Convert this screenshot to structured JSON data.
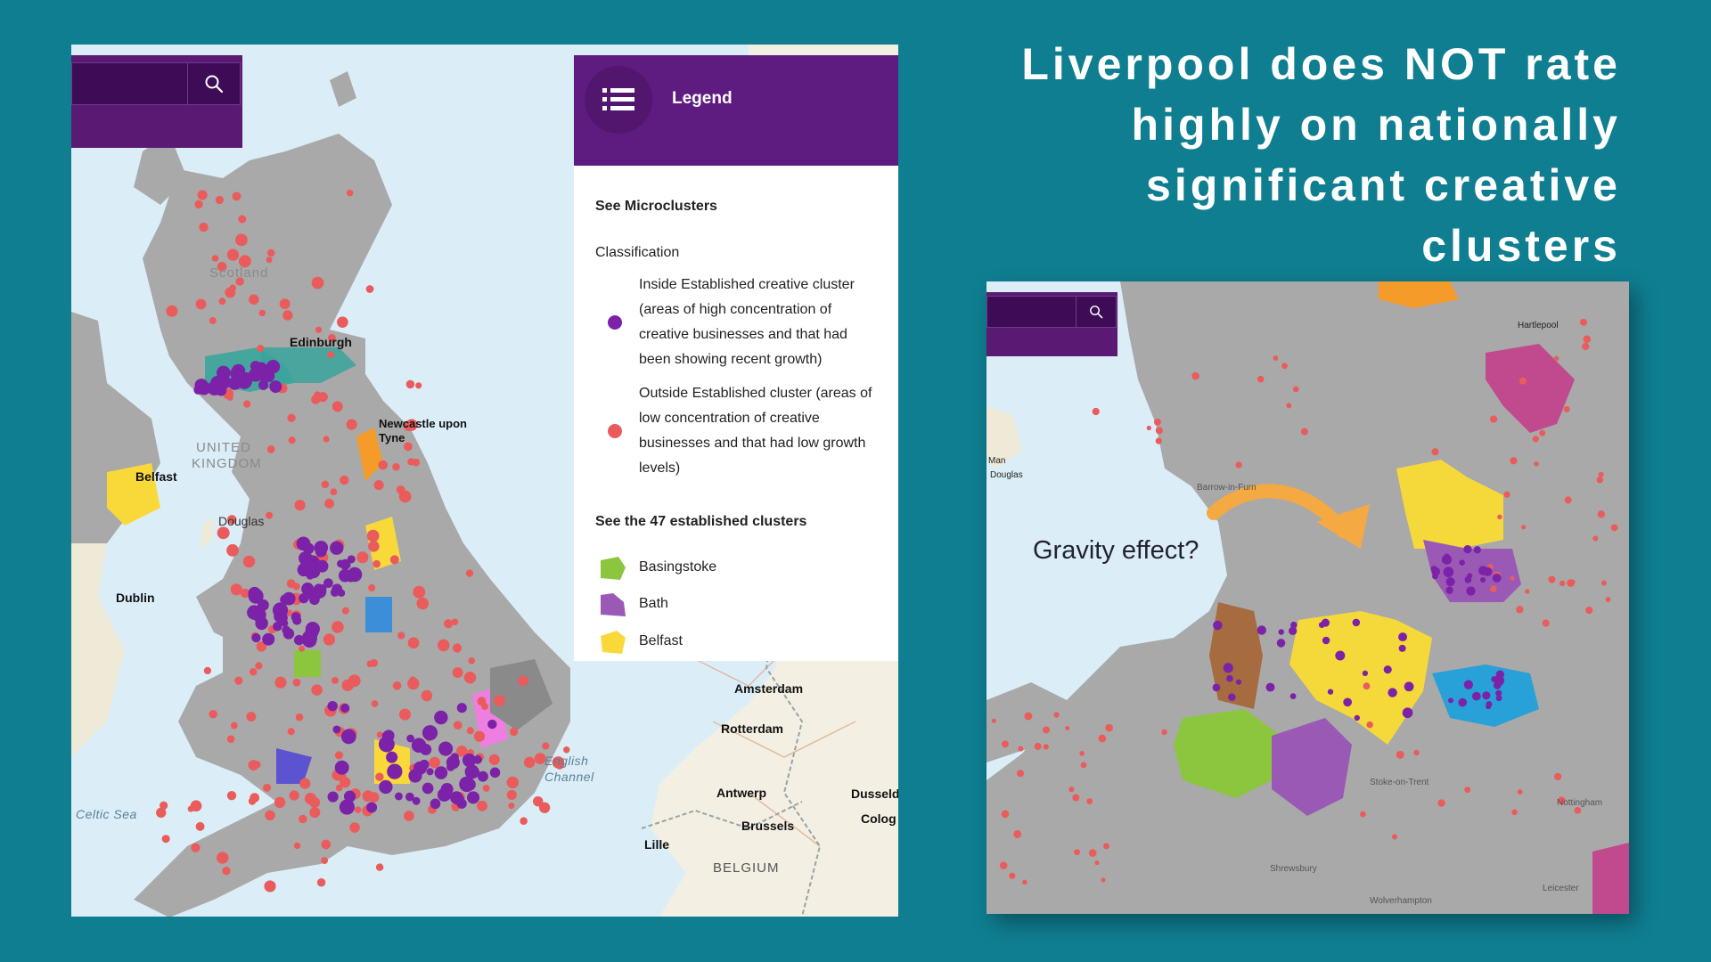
{
  "headline": "Liverpool does NOT rate highly on nationally significant creative clusters",
  "left_map": {
    "place_labels": {
      "edinburgh": "Edinburgh",
      "newcastle_1": "Newcastle upon",
      "newcastle_2": "Tyne",
      "belfast": "Belfast",
      "douglas": "Douglas",
      "dublin": "Dublin",
      "amsterdam": "Amsterdam",
      "rotterdam": "Rotterdam",
      "antwerp": "Antwerp",
      "brussels": "Brussels",
      "lille": "Lille",
      "dusseldorf": "Dusseld",
      "cologne": "Colog",
      "belgium": "BELGIUM",
      "scotland": "Scotland",
      "united_kingdom_1": "UNITED",
      "united_kingdom_2": "KINGDOM"
    },
    "sea_labels": {
      "english_channel_1": "English",
      "english_channel_2": "Channel",
      "celtic_sea": "Celtic Sea"
    },
    "search": {
      "value": "",
      "icon": "search-icon"
    }
  },
  "legend": {
    "title": "Legend",
    "menu_icon": "list-icon",
    "microclusters_heading": "See Microclusters",
    "classification_label": "Classification",
    "items": [
      {
        "color": "#7b22a8",
        "lines": [
          "Inside Established creative cluster",
          "(areas of high concentration of",
          "creative businesses and that had",
          "been showing recent growth)"
        ]
      },
      {
        "color": "#ea5c5c",
        "lines": [
          "Outside Established cluster (areas of",
          "low concentration of creative",
          "businesses and that had low growth",
          "levels)"
        ]
      }
    ],
    "clusters_heading": "See the 47 established clusters",
    "clusters": [
      {
        "name": "Basingstoke",
        "color": "#8cc63f"
      },
      {
        "name": "Bath",
        "color": "#9b59b6"
      },
      {
        "name": "Belfast",
        "color": "#f9d93a"
      }
    ]
  },
  "right_map": {
    "annotation": "Gravity effect?",
    "search": {
      "value": "",
      "icon": "search-icon"
    },
    "place_labels": {
      "hartlepool": "Hartlepool",
      "man": "Man",
      "douglas": "Douglas",
      "barrow": "Barrow-in-Furn",
      "stoke": "Stoke-on-Trent",
      "nottingham": "Nottingham",
      "shrewsbury": "Shrewsbury",
      "leicester": "Leicester",
      "wolverhampton": "Wolverhampton"
    }
  },
  "colors": {
    "background": "#0f7e91",
    "inside_cluster": "#7b22a8",
    "outside_cluster": "#ea5c5c",
    "legend_header": "#5e1c80",
    "land": "#a9a9a9",
    "sea": "#dbeef8",
    "continent": "#f3efe2"
  }
}
